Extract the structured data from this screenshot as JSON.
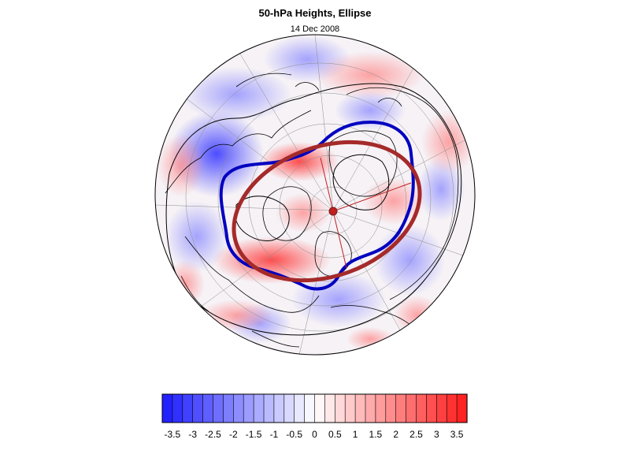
{
  "title": "50-hPa Heights, Ellipse",
  "subtitle": "14 Dec 2008",
  "colors": {
    "ellipse": "#a52a2a",
    "contour": "#0000c0",
    "neg": "#1a1aff",
    "pos": "#ff1a1a",
    "neutral": "#ffffff"
  },
  "colorbar": {
    "levels": [
      -3.75,
      -3.5,
      -3.25,
      -3,
      -2.75,
      -2.5,
      -2.25,
      -2,
      -1.75,
      -1.5,
      -1.25,
      -1,
      -0.75,
      -0.5,
      -0.25,
      0,
      0.25,
      0.5,
      0.75,
      1,
      1.25,
      1.5,
      1.75,
      2,
      2.25,
      2.5,
      2.75,
      3,
      3.25,
      3.5,
      3.75
    ],
    "labels": [
      "-3.5",
      "-3",
      "-2.5",
      "-2",
      "-1.5",
      "-1",
      "-0.5",
      "0",
      "0.5",
      "1",
      "1.5",
      "2",
      "2.5",
      "3",
      "3.5"
    ]
  }
}
